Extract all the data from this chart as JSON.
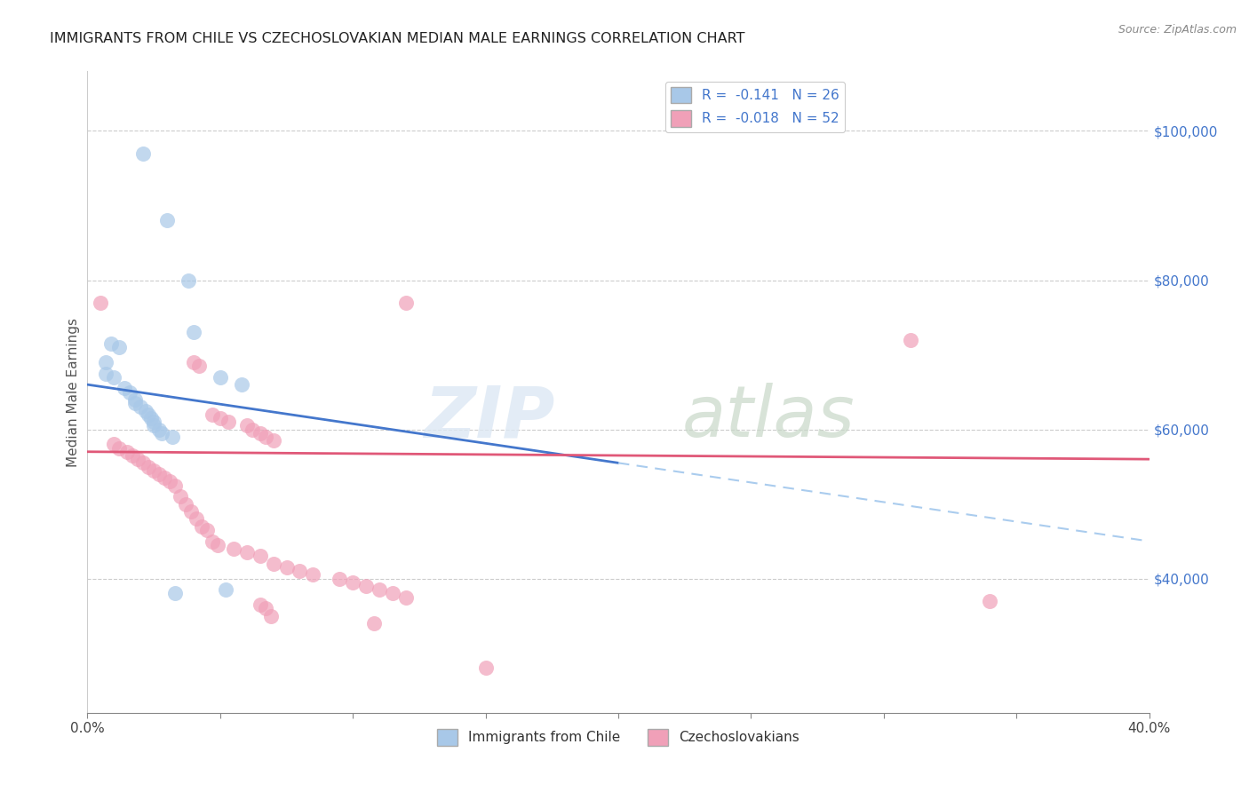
{
  "title": "IMMIGRANTS FROM CHILE VS CZECHOSLOVAKIAN MEDIAN MALE EARNINGS CORRELATION CHART",
  "source": "Source: ZipAtlas.com",
  "ylabel": "Median Male Earnings",
  "xmin": 0.0,
  "xmax": 0.4,
  "ymin": 22000,
  "ymax": 108000,
  "color_chile": "#A8C8E8",
  "color_czech": "#F0A0B8",
  "color_chile_line": "#4477CC",
  "color_czech_line": "#E05878",
  "color_chile_line_ext": "#AACCEE",
  "watermark_zip": "ZIP",
  "watermark_atlas": "atlas",
  "chile_points": [
    [
      0.021,
      97000
    ],
    [
      0.03,
      88000
    ],
    [
      0.038,
      80000
    ],
    [
      0.04,
      73000
    ],
    [
      0.009,
      71500
    ],
    [
      0.012,
      71000
    ],
    [
      0.007,
      69000
    ],
    [
      0.007,
      67500
    ],
    [
      0.01,
      67000
    ],
    [
      0.05,
      67000
    ],
    [
      0.058,
      66000
    ],
    [
      0.014,
      65500
    ],
    [
      0.016,
      65000
    ],
    [
      0.018,
      64000
    ],
    [
      0.018,
      63500
    ],
    [
      0.02,
      63000
    ],
    [
      0.022,
      62500
    ],
    [
      0.023,
      62000
    ],
    [
      0.024,
      61500
    ],
    [
      0.025,
      61000
    ],
    [
      0.025,
      60500
    ],
    [
      0.027,
      60000
    ],
    [
      0.028,
      59500
    ],
    [
      0.032,
      59000
    ],
    [
      0.052,
      38500
    ],
    [
      0.033,
      38000
    ]
  ],
  "czech_points": [
    [
      0.005,
      77000
    ],
    [
      0.12,
      77000
    ],
    [
      0.31,
      72000
    ],
    [
      0.04,
      69000
    ],
    [
      0.042,
      68500
    ],
    [
      0.047,
      62000
    ],
    [
      0.05,
      61500
    ],
    [
      0.053,
      61000
    ],
    [
      0.06,
      60500
    ],
    [
      0.062,
      60000
    ],
    [
      0.065,
      59500
    ],
    [
      0.067,
      59000
    ],
    [
      0.07,
      58500
    ],
    [
      0.01,
      58000
    ],
    [
      0.012,
      57500
    ],
    [
      0.015,
      57000
    ],
    [
      0.017,
      56500
    ],
    [
      0.019,
      56000
    ],
    [
      0.021,
      55500
    ],
    [
      0.023,
      55000
    ],
    [
      0.025,
      54500
    ],
    [
      0.027,
      54000
    ],
    [
      0.029,
      53500
    ],
    [
      0.031,
      53000
    ],
    [
      0.033,
      52500
    ],
    [
      0.035,
      51000
    ],
    [
      0.037,
      50000
    ],
    [
      0.039,
      49000
    ],
    [
      0.041,
      48000
    ],
    [
      0.043,
      47000
    ],
    [
      0.045,
      46500
    ],
    [
      0.047,
      45000
    ],
    [
      0.049,
      44500
    ],
    [
      0.055,
      44000
    ],
    [
      0.06,
      43500
    ],
    [
      0.065,
      43000
    ],
    [
      0.07,
      42000
    ],
    [
      0.075,
      41500
    ],
    [
      0.08,
      41000
    ],
    [
      0.085,
      40500
    ],
    [
      0.095,
      40000
    ],
    [
      0.1,
      39500
    ],
    [
      0.105,
      39000
    ],
    [
      0.11,
      38500
    ],
    [
      0.115,
      38000
    ],
    [
      0.12,
      37500
    ],
    [
      0.065,
      36500
    ],
    [
      0.067,
      36000
    ],
    [
      0.069,
      35000
    ],
    [
      0.108,
      34000
    ],
    [
      0.15,
      28000
    ],
    [
      0.34,
      37000
    ]
  ],
  "chile_line_solid": [
    [
      0.0,
      66000
    ],
    [
      0.2,
      55500
    ]
  ],
  "chile_line_dashed": [
    [
      0.2,
      55500
    ],
    [
      0.4,
      45000
    ]
  ],
  "czech_line": [
    [
      0.0,
      57000
    ],
    [
      0.4,
      56000
    ]
  ],
  "ytick_positions": [
    40000,
    60000,
    80000,
    100000
  ],
  "ytick_labels": [
    "$40,000",
    "$60,000",
    "$80,000",
    "$100,000"
  ]
}
